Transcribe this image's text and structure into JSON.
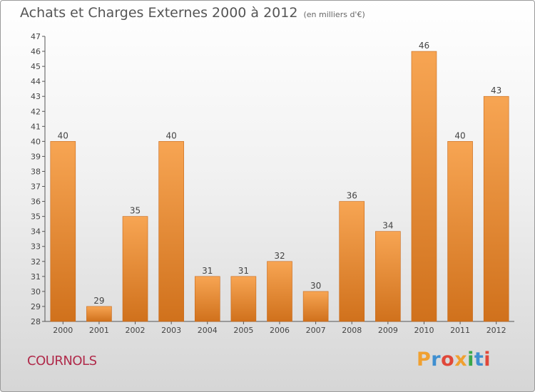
{
  "header": {
    "title": "Achats et Charges Externes 2000 à 2012",
    "unit": "(en milliers d'€)"
  },
  "commune": "COURNOLS",
  "logo": {
    "text": "Proxiti",
    "colors": [
      "#f0a030",
      "#3f8fd0",
      "#e0483a",
      "#f0a030",
      "#3aa84a",
      "#3f8fd0",
      "#e0483a"
    ]
  },
  "colors": {
    "bar_top": "#f7a553",
    "bar_bottom": "#d0711c",
    "bar_edge": "#c86818",
    "axis": "#555555",
    "text": "#444444"
  },
  "chart_data": {
    "type": "bar",
    "title": "Achats et Charges Externes 2000 à 2012",
    "subtitle": "(en milliers d'€)",
    "xlabel": "",
    "ylabel": "",
    "categories": [
      "2000",
      "2001",
      "2002",
      "2003",
      "2004",
      "2005",
      "2006",
      "2007",
      "2008",
      "2009",
      "2010",
      "2011",
      "2012"
    ],
    "values": [
      40,
      29,
      35,
      40,
      31,
      31,
      32,
      30,
      36,
      34,
      46,
      40,
      43
    ],
    "ylim": [
      28,
      47
    ],
    "yticks": [
      28,
      29,
      30,
      31,
      32,
      33,
      34,
      35,
      36,
      37,
      38,
      39,
      40,
      41,
      42,
      43,
      44,
      45,
      46,
      47
    ],
    "grid": false,
    "data_labels": true
  }
}
